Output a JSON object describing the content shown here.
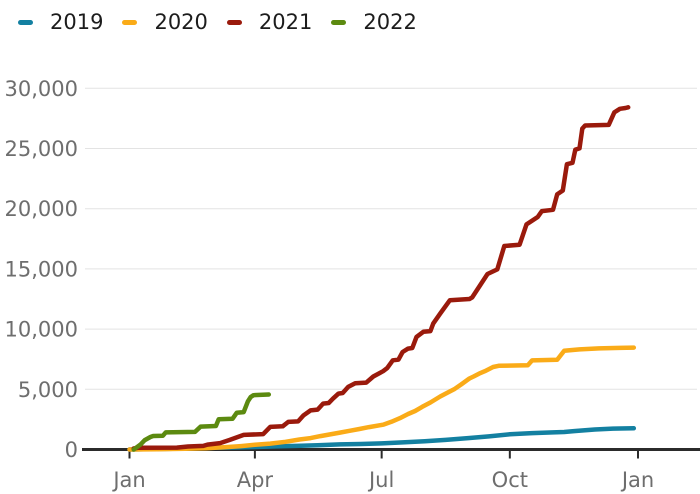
{
  "chart_data": {
    "type": "line",
    "title": "",
    "legend_position": "top-left",
    "grid": true,
    "style": {
      "background": "#ffffff",
      "grid_color": "#e3e3e3",
      "axis_color": "#2b2b2b",
      "axis_text_color": "#6e6e6e",
      "legend_text_color": "#1c1c1c"
    },
    "x_axis": {
      "unit": "month",
      "domain_days": [
        0,
        365
      ],
      "ticks": [
        {
          "label": "Jan",
          "day": 0
        },
        {
          "label": "Apr",
          "day": 90
        },
        {
          "label": "Jul",
          "day": 181
        },
        {
          "label": "Oct",
          "day": 273
        },
        {
          "label": "Jan",
          "day": 365
        }
      ]
    },
    "y_axis": {
      "range": [
        0,
        30000
      ],
      "ticks": [
        {
          "value": 0,
          "label": "0"
        },
        {
          "value": 5000,
          "label": "5,000"
        },
        {
          "value": 10000,
          "label": "10,000"
        },
        {
          "value": 15000,
          "label": "15,000"
        },
        {
          "value": 20000,
          "label": "20,000"
        },
        {
          "value": 25000,
          "label": "25,000"
        },
        {
          "value": 30000,
          "label": "30,000"
        }
      ]
    },
    "series": [
      {
        "name": "2019",
        "color": "#1380a1",
        "points": [
          [
            0,
            0
          ],
          [
            15,
            30
          ],
          [
            31,
            60
          ],
          [
            46,
            100
          ],
          [
            60,
            140
          ],
          [
            74,
            170
          ],
          [
            90,
            210
          ],
          [
            105,
            255
          ],
          [
            120,
            300
          ],
          [
            135,
            360
          ],
          [
            151,
            420
          ],
          [
            166,
            460
          ],
          [
            181,
            510
          ],
          [
            196,
            590
          ],
          [
            212,
            690
          ],
          [
            227,
            800
          ],
          [
            243,
            950
          ],
          [
            258,
            1090
          ],
          [
            273,
            1260
          ],
          [
            289,
            1360
          ],
          [
            304,
            1420
          ],
          [
            312,
            1450
          ],
          [
            319,
            1530
          ],
          [
            334,
            1660
          ],
          [
            347,
            1740
          ],
          [
            362,
            1760
          ]
        ]
      },
      {
        "name": "2020",
        "color": "#faab18",
        "points": [
          [
            0,
            0
          ],
          [
            20,
            25
          ],
          [
            40,
            60
          ],
          [
            55,
            110
          ],
          [
            68,
            180
          ],
          [
            80,
            280
          ],
          [
            90,
            390
          ],
          [
            101,
            490
          ],
          [
            112,
            640
          ],
          [
            122,
            830
          ],
          [
            130,
            950
          ],
          [
            137,
            1110
          ],
          [
            144,
            1250
          ],
          [
            151,
            1400
          ],
          [
            158,
            1550
          ],
          [
            165,
            1700
          ],
          [
            172,
            1860
          ],
          [
            182,
            2060
          ],
          [
            188,
            2300
          ],
          [
            194,
            2600
          ],
          [
            200,
            2950
          ],
          [
            205,
            3200
          ],
          [
            210,
            3540
          ],
          [
            216,
            3900
          ],
          [
            223,
            4400
          ],
          [
            228,
            4700
          ],
          [
            233,
            5000
          ],
          [
            238,
            5400
          ],
          [
            244,
            5900
          ],
          [
            247,
            6060
          ],
          [
            251,
            6300
          ],
          [
            255,
            6500
          ],
          [
            261,
            6850
          ],
          [
            265,
            6950
          ],
          [
            286,
            7000
          ],
          [
            289,
            7400
          ],
          [
            307,
            7450
          ],
          [
            312,
            8200
          ],
          [
            318,
            8260
          ],
          [
            323,
            8310
          ],
          [
            337,
            8400
          ],
          [
            352,
            8440
          ],
          [
            362,
            8460
          ]
        ]
      },
      {
        "name": "2021",
        "color": "#9a1a0c",
        "points": [
          [
            3,
            80
          ],
          [
            6,
            140
          ],
          [
            34,
            160
          ],
          [
            42,
            250
          ],
          [
            53,
            300
          ],
          [
            56,
            410
          ],
          [
            65,
            530
          ],
          [
            72,
            800
          ],
          [
            82,
            1210
          ],
          [
            96,
            1280
          ],
          [
            101,
            1880
          ],
          [
            110,
            1930
          ],
          [
            114,
            2290
          ],
          [
            121,
            2330
          ],
          [
            125,
            2840
          ],
          [
            130,
            3250
          ],
          [
            135,
            3310
          ],
          [
            139,
            3810
          ],
          [
            143,
            3860
          ],
          [
            146,
            4220
          ],
          [
            150,
            4640
          ],
          [
            153,
            4690
          ],
          [
            157,
            5200
          ],
          [
            162,
            5500
          ],
          [
            170,
            5560
          ],
          [
            175,
            6060
          ],
          [
            182,
            6500
          ],
          [
            185,
            6760
          ],
          [
            189,
            7410
          ],
          [
            193,
            7460
          ],
          [
            196,
            8100
          ],
          [
            200,
            8380
          ],
          [
            203,
            8430
          ],
          [
            206,
            9350
          ],
          [
            211,
            9780
          ],
          [
            216,
            9830
          ],
          [
            218,
            10460
          ],
          [
            223,
            11290
          ],
          [
            230,
            12400
          ],
          [
            244,
            12500
          ],
          [
            246,
            12630
          ],
          [
            257,
            14580
          ],
          [
            264,
            14960
          ],
          [
            269,
            16900
          ],
          [
            280,
            17010
          ],
          [
            285,
            18700
          ],
          [
            293,
            19310
          ],
          [
            296,
            19800
          ],
          [
            304,
            19910
          ],
          [
            307,
            21200
          ],
          [
            311,
            21510
          ],
          [
            314,
            23700
          ],
          [
            318,
            23810
          ],
          [
            320,
            24900
          ],
          [
            323,
            25010
          ],
          [
            325,
            26650
          ],
          [
            327,
            26910
          ],
          [
            344,
            26960
          ],
          [
            348,
            28000
          ],
          [
            352,
            28300
          ],
          [
            356,
            28360
          ],
          [
            358,
            28420
          ]
        ]
      },
      {
        "name": "2022",
        "color": "#5c8a10",
        "points": [
          [
            3,
            0
          ],
          [
            8,
            420
          ],
          [
            11,
            780
          ],
          [
            15,
            1040
          ],
          [
            17,
            1120
          ],
          [
            24,
            1150
          ],
          [
            26,
            1420
          ],
          [
            47,
            1460
          ],
          [
            51,
            1900
          ],
          [
            62,
            1950
          ],
          [
            64,
            2520
          ],
          [
            74,
            2560
          ],
          [
            77,
            3060
          ],
          [
            82,
            3110
          ],
          [
            85,
            4000
          ],
          [
            87,
            4360
          ],
          [
            89,
            4510
          ],
          [
            100,
            4570
          ]
        ]
      }
    ]
  }
}
